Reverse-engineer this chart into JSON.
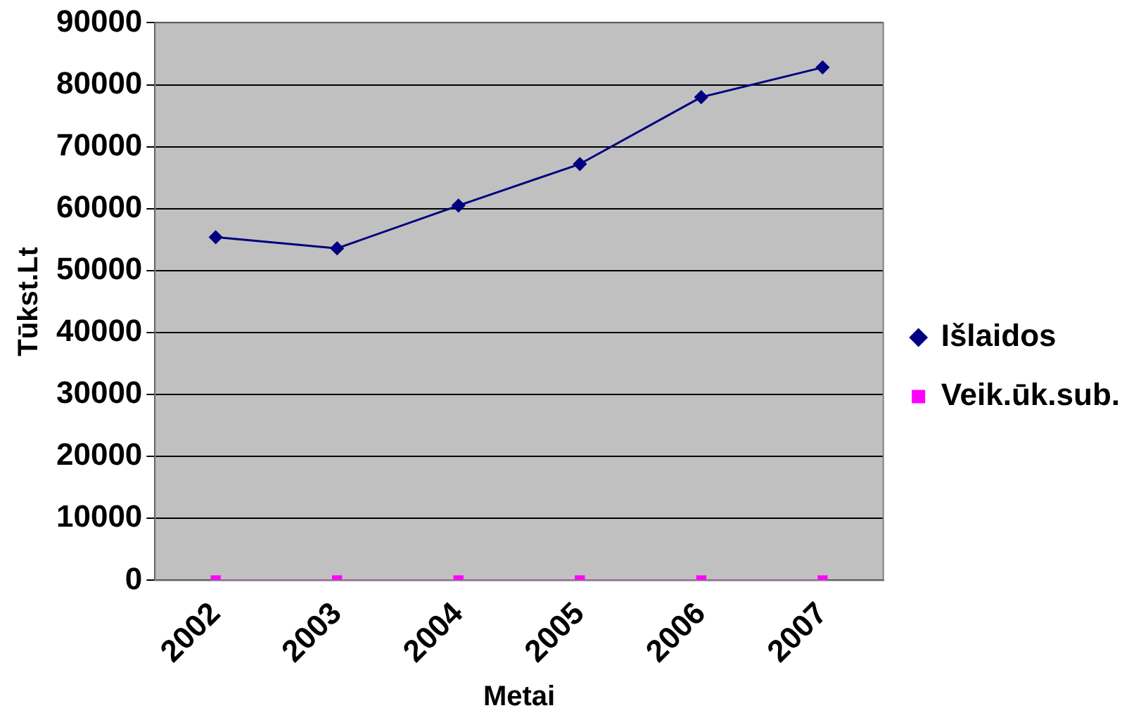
{
  "chart_data": {
    "type": "line",
    "xlabel": "Metai",
    "ylabel": "Tūkst.Lt",
    "categories": [
      "2002",
      "2003",
      "2004",
      "2005",
      "2006",
      "2007"
    ],
    "series": [
      {
        "name": "Išlaidos",
        "color": "#000080",
        "marker": "diamond",
        "values": [
          55400,
          53600,
          60500,
          67200,
          78000,
          82800
        ]
      },
      {
        "name": "Veik.ūk.sub.",
        "color": "#ff00ff",
        "marker": "square",
        "values": [
          0,
          0,
          0,
          0,
          0,
          0
        ]
      }
    ],
    "ylim": [
      0,
      90000
    ],
    "yticks": [
      0,
      10000,
      20000,
      30000,
      40000,
      50000,
      60000,
      70000,
      80000,
      90000
    ],
    "grid": "y",
    "legend": "right"
  }
}
